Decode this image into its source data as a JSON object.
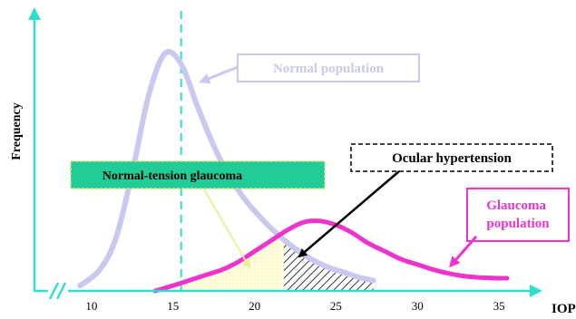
{
  "chart_data": {
    "type": "line",
    "title": "",
    "xlabel": "IOP",
    "ylabel": "Frequency",
    "xlim": [
      6.5,
      37
    ],
    "ylim": [
      0,
      100
    ],
    "x_ticks": [
      10,
      15,
      20,
      25,
      30,
      35
    ],
    "threshold_x": 15.5,
    "ocular_hypertension_start_x": 21.8,
    "series": [
      {
        "name": "Normal population",
        "color": "#c8c8f0",
        "x": [
          9.3,
          10.5,
          11.5,
          12.5,
          13.5,
          14.5,
          15.5,
          16.5,
          17.5,
          18.5,
          19.5,
          20.5,
          21.5,
          22.5,
          23.5,
          24.5,
          25.5,
          26.5,
          27.3
        ],
        "values": [
          2,
          8,
          20,
          45,
          74,
          90,
          86,
          70,
          55,
          43,
          34,
          27,
          21,
          16,
          12,
          9,
          7,
          5,
          4
        ]
      },
      {
        "name": "Glaucoma population",
        "color": "#ee33cc",
        "x": [
          13.9,
          15,
          16,
          17,
          18,
          19,
          20,
          21,
          22,
          23,
          24,
          25,
          26,
          27,
          28,
          29,
          30,
          31,
          32,
          33,
          34,
          35,
          35.5
        ],
        "values": [
          0,
          2,
          4,
          6,
          8,
          11,
          15,
          19,
          23,
          26,
          26.5,
          25,
          22,
          18,
          15,
          12,
          10,
          8,
          6.5,
          5.5,
          5,
          4.8,
          4.8
        ]
      }
    ],
    "annotations": [
      {
        "text": "Normal population",
        "color": "#c8c8f0"
      },
      {
        "text": "Normal-tension glaucoma",
        "color": "#000000",
        "fill": "#22cc99"
      },
      {
        "text": "Ocular hypertension",
        "color": "#000000"
      },
      {
        "text": "Glaucoma population",
        "color": "#ee33cc"
      }
    ]
  },
  "colors": {
    "axis": "#33ddcc",
    "ntg_fill": "#ffffcc",
    "ntg_arrow": "#eeee99",
    "hatch": "#000000"
  }
}
